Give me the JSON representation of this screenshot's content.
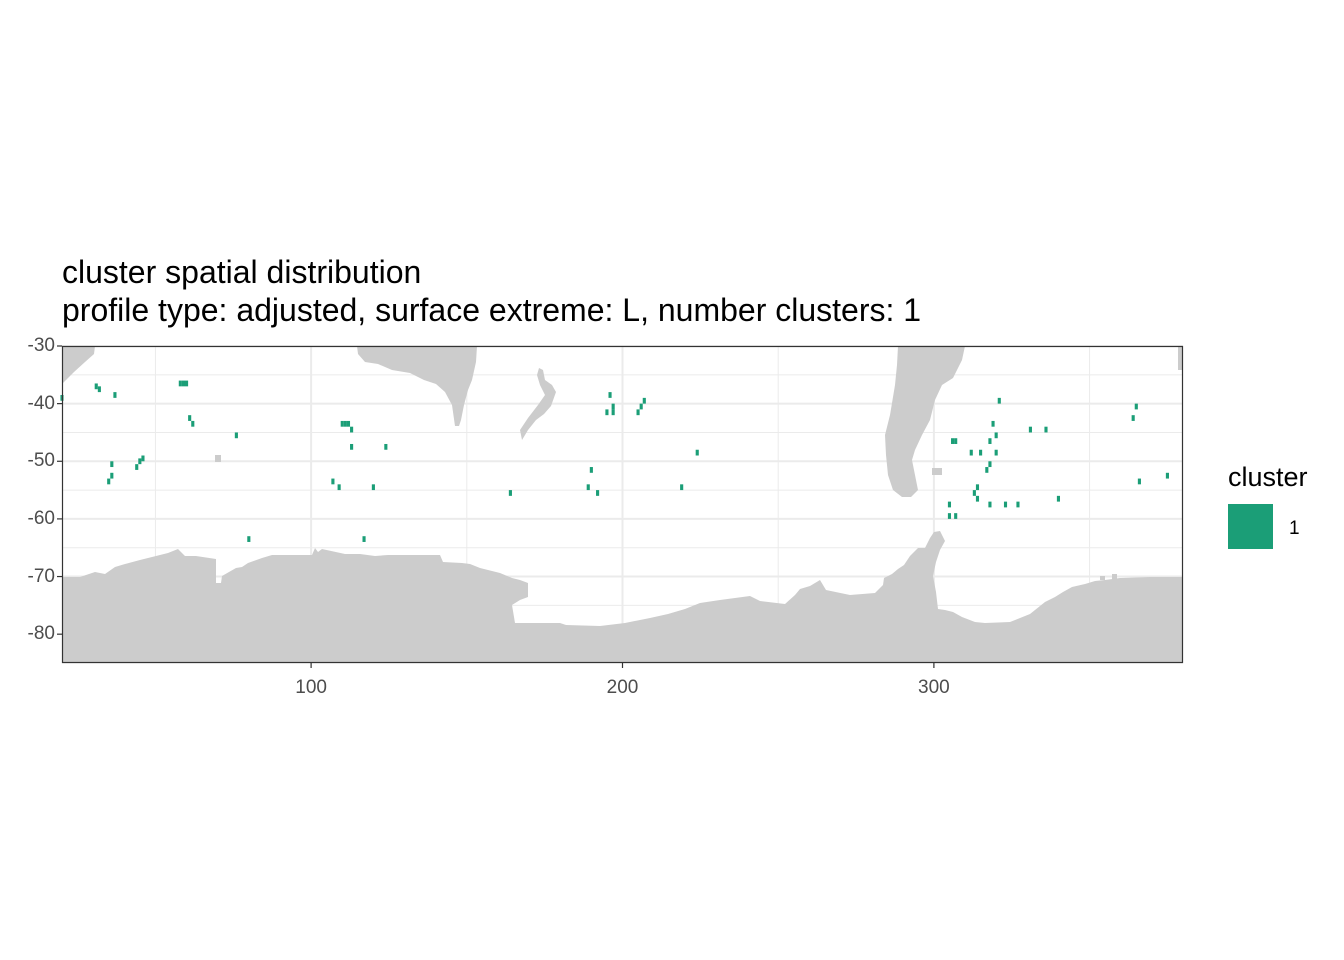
{
  "title": "cluster spatial distribution",
  "subtitle": "profile type: adjusted, surface extreme: L, number clusters: 1",
  "colors": {
    "land": "#cccccc",
    "cluster_1": "#1b9e77",
    "grid": "#ebebeb",
    "border": "#333333"
  },
  "chart_data": {
    "type": "heatmap",
    "x_ticks": [
      "100",
      "200",
      "300"
    ],
    "y_ticks": [
      "-30",
      "-40",
      "-50",
      "-60",
      "-70",
      "-80"
    ],
    "xlim": [
      20,
      380
    ],
    "ylim": [
      -85,
      -30
    ],
    "grid": true,
    "legend": {
      "title": "cluster",
      "position": "right",
      "entries": [
        {
          "label": "1",
          "color": "#1b9e77"
        }
      ]
    },
    "cluster_cells": [
      [
        20,
        -39
      ],
      [
        31,
        -37
      ],
      [
        32,
        -37.5
      ],
      [
        37,
        -38.5
      ],
      [
        36,
        -50.5
      ],
      [
        36,
        -52.5
      ],
      [
        35,
        -53.5
      ],
      [
        44,
        -51
      ],
      [
        45,
        -50
      ],
      [
        46,
        -49.5
      ],
      [
        58,
        -36.5
      ],
      [
        59,
        -36.5
      ],
      [
        60,
        -36.5
      ],
      [
        61,
        -42.5
      ],
      [
        62,
        -43.5
      ],
      [
        76,
        -45.5
      ],
      [
        80,
        -63.5
      ],
      [
        107,
        -53.5
      ],
      [
        109,
        -54.5
      ],
      [
        110,
        -43.5
      ],
      [
        111,
        -43.5
      ],
      [
        112,
        -43.5
      ],
      [
        113,
        -44.5
      ],
      [
        113,
        -47.5
      ],
      [
        117,
        -63.5
      ],
      [
        120,
        -54.5
      ],
      [
        124,
        -47.5
      ],
      [
        164,
        -55.5
      ],
      [
        189,
        -54.5
      ],
      [
        190,
        -51.5
      ],
      [
        192,
        -55.5
      ],
      [
        195,
        -41.5
      ],
      [
        196,
        -38.5
      ],
      [
        197,
        -40.5
      ],
      [
        197,
        -41.5
      ],
      [
        205,
        -41.5
      ],
      [
        206,
        -40.5
      ],
      [
        207,
        -39.5
      ],
      [
        219,
        -54.5
      ],
      [
        224,
        -48.5
      ],
      [
        306,
        -46.5
      ],
      [
        307,
        -46.5
      ],
      [
        305,
        -57.5
      ],
      [
        305,
        -59.5
      ],
      [
        307,
        -59.5
      ],
      [
        312,
        -48.5
      ],
      [
        313,
        -55.5
      ],
      [
        314,
        -54.5
      ],
      [
        314,
        -56.5
      ],
      [
        315,
        -48.5
      ],
      [
        317,
        -51.5
      ],
      [
        318,
        -46.5
      ],
      [
        318,
        -50.5
      ],
      [
        318,
        -57.5
      ],
      [
        319,
        -43.5
      ],
      [
        320,
        -45.5
      ],
      [
        320,
        -48.5
      ],
      [
        321,
        -39.5
      ],
      [
        323,
        -57.5
      ],
      [
        327,
        -57.5
      ],
      [
        331,
        -44.5
      ],
      [
        336,
        -44.5
      ],
      [
        340,
        -56.5
      ],
      [
        365,
        -40.5
      ],
      [
        364,
        -42.5
      ],
      [
        366,
        -53.5
      ],
      [
        375,
        -52.5
      ]
    ]
  }
}
